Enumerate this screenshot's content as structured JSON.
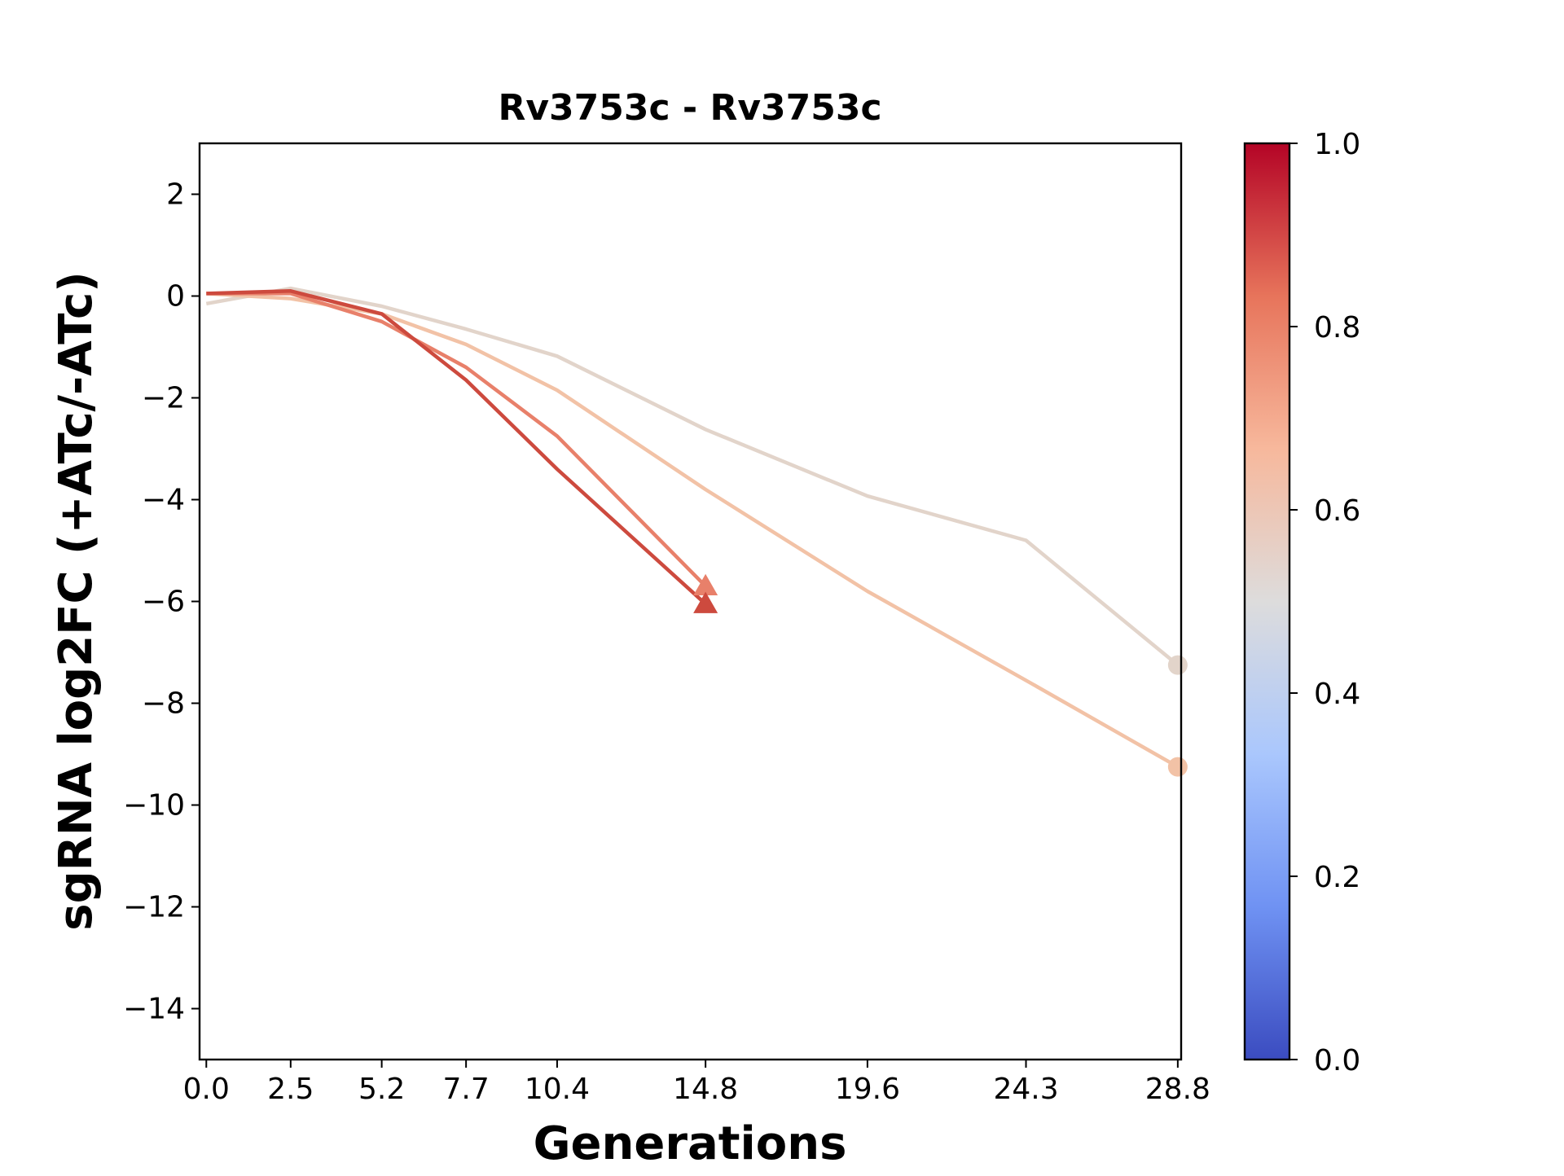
{
  "chart_data": {
    "type": "line",
    "title": "Rv3753c - Rv3753c",
    "xlabel": "Generations",
    "ylabel": "sgRNA log2FC (+ATc/-ATc)",
    "x_ticks": [
      0.0,
      2.5,
      5.2,
      7.7,
      10.4,
      14.8,
      19.6,
      24.3,
      28.8
    ],
    "x_tick_labels": [
      "0.0",
      "2.5",
      "5.2",
      "7.7",
      "10.4",
      "14.8",
      "19.6",
      "24.3",
      "28.8"
    ],
    "y_ticks": [
      2,
      0,
      -2,
      -4,
      -6,
      -8,
      -10,
      -12,
      -14
    ],
    "y_tick_labels": [
      "2",
      "0",
      "−2",
      "−4",
      "−6",
      "−8",
      "−10",
      "−12",
      "−14"
    ],
    "xlim": [
      -0.2,
      28.9
    ],
    "ylim": [
      -15,
      3
    ],
    "grid": false,
    "series": [
      {
        "color": "#e2d4ca",
        "marker": "circle",
        "x": [
          0.0,
          2.5,
          5.2,
          7.7,
          10.4,
          14.8,
          19.6,
          24.3,
          28.8
        ],
        "y": [
          -0.15,
          0.15,
          -0.2,
          -0.65,
          -1.18,
          -2.62,
          -3.93,
          -4.8,
          -7.25
        ]
      },
      {
        "color": "#f2c2a6",
        "marker": "circle",
        "x": [
          0.0,
          2.5,
          5.2,
          7.7,
          10.4,
          14.8,
          19.6,
          24.3,
          28.8
        ],
        "y": [
          0.05,
          -0.05,
          -0.35,
          -0.95,
          -1.85,
          -3.8,
          -5.8,
          -7.55,
          -9.25
        ]
      },
      {
        "color": "#e8806a",
        "marker": "triangle",
        "x": [
          0.0,
          2.5,
          5.2,
          7.7,
          10.4,
          14.8
        ],
        "y": [
          0.05,
          0.05,
          -0.5,
          -1.4,
          -2.75,
          -5.7
        ]
      },
      {
        "color": "#cd4a3e",
        "marker": "triangle",
        "x": [
          0.0,
          2.5,
          5.2,
          7.7,
          10.4,
          14.8
        ],
        "y": [
          0.05,
          0.1,
          -0.35,
          -1.65,
          -3.4,
          -6.05
        ]
      }
    ],
    "colorbar": {
      "colormap": "coolwarm",
      "range": [
        0.0,
        1.0
      ],
      "tick_labels": [
        "0.0",
        "0.2",
        "0.4",
        "0.6",
        "0.8",
        "1.0"
      ],
      "stops": [
        "#3b4cc0",
        "#6f92f3",
        "#aac7fd",
        "#dddcdc",
        "#f7b89c",
        "#e7745b",
        "#b40426"
      ]
    }
  }
}
